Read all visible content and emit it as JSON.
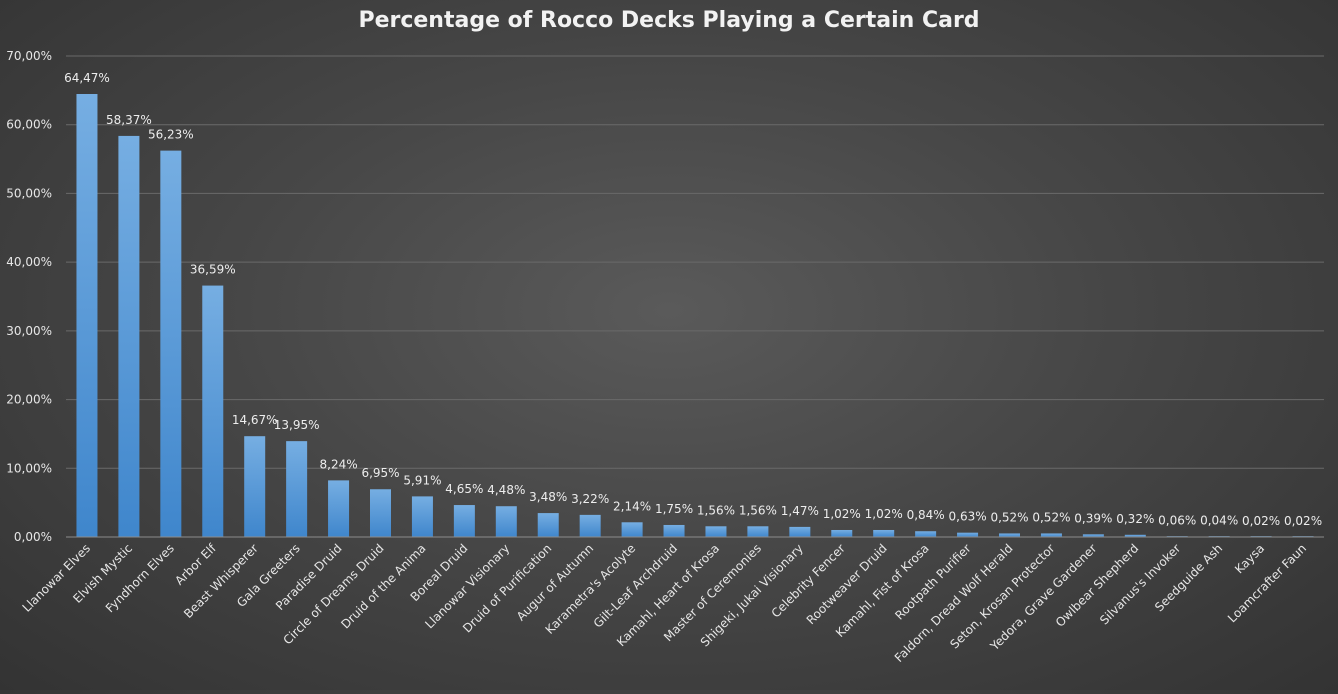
{
  "chart_data": {
    "type": "bar",
    "title": "Percentage of Rocco Decks Playing a Certain Card",
    "xlabel": "",
    "ylabel": "",
    "ylim": [
      0,
      70
    ],
    "yticks": [
      0,
      10,
      20,
      30,
      40,
      50,
      60,
      70
    ],
    "ytick_labels": [
      "0,00%",
      "10,00%",
      "20,00%",
      "30,00%",
      "40,00%",
      "50,00%",
      "60,00%",
      "70,00%"
    ],
    "grid": true,
    "legend": "none",
    "bar_color": "#5b9bd5",
    "categories": [
      "Llanowar Elves",
      "Elvish Mystic",
      "Fyndhorn Elves",
      "Arbor Elf",
      "Beast Whisperer",
      "Gala Greeters",
      "Paradise Druid",
      "Circle of Dreams Druid",
      "Druid of the Anima",
      "Boreal Druid",
      "Llanowar Visionary",
      "Druid of Purification",
      "Augur of Autumn",
      "Karametra's Acolyte",
      "Gilt-Leaf Archdruid",
      "Kamahl, Heart of Krosa",
      "Master of Ceremonies",
      "Shigeki, Jukai Visionary",
      "Celebrity Fencer",
      "Rootweaver Druid",
      "Kamahl, Fist of Krosa",
      "Rootpath Purifier",
      "Faldorn, Dread Wolf Herald",
      "Seton, Krosan Protector",
      "Yedora, Grave Gardener",
      "Owlbear Shepherd",
      "Silvanus's Invoker",
      "Seedguide Ash",
      "Kaysa",
      "Loamcrafter Faun"
    ],
    "values": [
      64.47,
      58.37,
      56.23,
      36.59,
      14.67,
      13.95,
      8.24,
      6.95,
      5.91,
      4.65,
      4.48,
      3.48,
      3.22,
      2.14,
      1.75,
      1.56,
      1.56,
      1.47,
      1.02,
      1.02,
      0.84,
      0.63,
      0.52,
      0.52,
      0.39,
      0.32,
      0.06,
      0.04,
      0.02,
      0.02
    ],
    "data_labels": [
      "64,47%",
      "58,37%",
      "56,23%",
      "36,59%",
      "14,67%",
      "13,95%",
      "8,24%",
      "6,95%",
      "5,91%",
      "4,65%",
      "4,48%",
      "3,48%",
      "3,22%",
      "2,14%",
      "1,75%",
      "1,56%",
      "1,56%",
      "1,47%",
      "1,02%",
      "1,02%",
      "0,84%",
      "0,63%",
      "0,52%",
      "0,52%",
      "0,39%",
      "0,32%",
      "0,06%",
      "0,04%",
      "0,02%",
      "0,02%"
    ]
  }
}
